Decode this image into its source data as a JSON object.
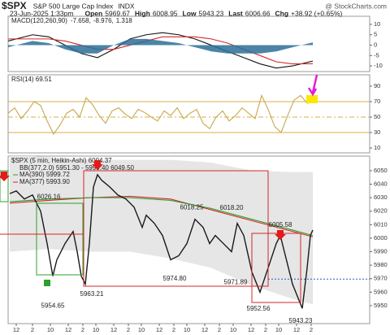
{
  "header": {
    "symbol": "$SPX",
    "name": "S&P 500 Large Cap Index",
    "exchange": "INDX",
    "watermark": "@ StockCharts.com",
    "date": "23-Jun-2025 1:33pm",
    "quote": [
      {
        "label": "Open",
        "value": 5969.67
      },
      {
        "label": "High",
        "value": 6008.95
      },
      {
        "label": "Low",
        "value": 5943.23
      },
      {
        "label": "Last",
        "value": 6006.66
      },
      {
        "label": "Chg",
        "value": "+38.92 (+0.65%)"
      }
    ]
  },
  "chart_data": [
    {
      "type": "line",
      "title": "MACD(120,260,90)",
      "xlim": [
        0,
        445
      ],
      "ylim": [
        -12.7,
        13.9
      ],
      "yticks": [
        10,
        5,
        0,
        -5,
        -10
      ],
      "series": [
        {
          "type": "line",
          "color": "#111111",
          "readout": "-7.658,",
          "x": [
            0,
            30,
            50,
            70,
            90,
            110,
            130,
            150,
            170,
            190,
            210,
            230,
            250,
            270,
            290,
            310,
            330,
            350,
            375
          ],
          "values": [
            2,
            5,
            4,
            0,
            -4,
            -6,
            -2,
            3,
            5,
            6,
            5,
            3,
            0,
            -3,
            -6,
            -9,
            -11,
            -10,
            -7.658
          ]
        },
        {
          "type": "line",
          "color": "#d62728",
          "readout": "-8.976,",
          "x": [
            0,
            30,
            50,
            70,
            90,
            110,
            130,
            150,
            170,
            190,
            210,
            230,
            250,
            270,
            290,
            310,
            330,
            350,
            375
          ],
          "values": [
            3,
            3,
            3,
            2,
            0,
            -2,
            -2,
            0,
            2,
            4,
            4,
            4,
            3,
            1,
            -2,
            -5,
            -8,
            -9,
            -8.976
          ]
        },
        {
          "type": "area",
          "color": "#2b6f97",
          "readout": "1.318",
          "x": [
            0,
            30,
            50,
            70,
            90,
            110,
            130,
            150,
            170,
            190,
            210,
            230,
            250,
            270,
            290,
            310,
            330,
            350,
            375
          ],
          "values": [
            -1,
            2,
            1,
            -2,
            -4,
            -4,
            0,
            3,
            3,
            2,
            1,
            -1,
            -3,
            -4,
            -4,
            -4,
            -3,
            -1,
            1.318
          ]
        }
      ]
    },
    {
      "type": "line",
      "xlim": [
        0,
        445
      ],
      "ylim": [
        3.7,
        104.7
      ],
      "yticks": [
        90,
        70,
        50,
        30,
        10
      ],
      "levels": [
        70,
        30
      ],
      "dashed_levels": [
        50
      ],
      "series": [
        {
          "type": "line",
          "name": "RSI(14) 69.51",
          "color": "#c9a84c",
          "x": [
            0,
            8,
            16,
            24,
            32,
            40,
            48,
            56,
            64,
            72,
            80,
            88,
            96,
            104,
            112,
            120,
            128,
            136,
            144,
            152,
            160,
            168,
            176,
            184,
            192,
            200,
            208,
            216,
            224,
            232,
            240,
            248,
            256,
            264,
            272,
            280,
            288,
            296,
            304,
            312,
            320,
            328,
            336,
            344,
            352,
            360,
            368,
            376
          ],
          "values": [
            55,
            62,
            48,
            58,
            70,
            65,
            45,
            28,
            40,
            55,
            60,
            50,
            75,
            66,
            52,
            42,
            58,
            62,
            54,
            48,
            60,
            56,
            50,
            45,
            58,
            52,
            62,
            48,
            55,
            60,
            42,
            35,
            50,
            58,
            45,
            52,
            62,
            55,
            48,
            78,
            60,
            38,
            30,
            52,
            72,
            78,
            68,
            69.51
          ]
        }
      ]
    },
    {
      "type": "line",
      "xlim": [
        0,
        445
      ],
      "ylim": [
        5936.7,
        6060.8
      ],
      "yticks": [
        6050,
        6040,
        6030,
        6020,
        6010,
        6000,
        5990,
        5980,
        5970,
        5960,
        5950
      ],
      "xticks": [
        {
          "value": 10,
          "label": "12"
        },
        {
          "value": 30,
          "label": "2"
        },
        {
          "value": 52,
          "label": "10"
        },
        {
          "value": 74,
          "label": "12"
        },
        {
          "value": 92,
          "label": "2"
        },
        {
          "value": 108,
          "label": "10"
        },
        {
          "value": 130,
          "label": "12"
        },
        {
          "value": 148,
          "label": "2"
        },
        {
          "value": 164,
          "label": "10"
        },
        {
          "value": 186,
          "label": "12"
        },
        {
          "value": 204,
          "label": "2"
        },
        {
          "value": 220,
          "label": "10"
        },
        {
          "value": 242,
          "label": "12"
        },
        {
          "value": 260,
          "label": "2"
        },
        {
          "value": 277,
          "label": "10"
        },
        {
          "value": 299,
          "label": "12"
        },
        {
          "value": 317,
          "label": "2"
        },
        {
          "value": 333,
          "label": "10"
        },
        {
          "value": 355,
          "label": "12"
        },
        {
          "value": 373,
          "label": "2"
        }
      ],
      "bands": {
        "name": "BB(377,2.0) 5951.30 - 5999.40 6049.50",
        "color": "#e6e6e6",
        "x": [
          2,
          50,
          100,
          150,
          200,
          250,
          300,
          350,
          375
        ],
        "upper": [
          6062,
          6060,
          6058,
          6058,
          6058,
          6056,
          6050,
          6049,
          6049
        ],
        "lower": [
          5990,
          5992,
          5990,
          5990,
          5985,
          5978,
          5965,
          5955,
          5951
        ]
      },
      "series": [
        {
          "type": "line",
          "name": "MA(377) 5993.90",
          "color": "#d62728",
          "x": [
            2,
            50,
            100,
            150,
            200,
            250,
            300,
            350,
            375
          ],
          "values": [
            6026,
            6028,
            6030,
            6031,
            6029,
            6021,
            6013,
            6005,
            6001
          ]
        },
        {
          "type": "line",
          "name": "MA(390) 5999.72",
          "color": "#2ca02c",
          "x": [
            2,
            50,
            100,
            150,
            200,
            250,
            300,
            350,
            375
          ],
          "values": [
            6027,
            6029,
            6030,
            6030,
            6028,
            6022,
            6014,
            6006,
            6002
          ]
        },
        {
          "type": "line",
          "name": "$SPX (5 min, Heikin-Ashi) 6004.37",
          "color": "#1a1a1a",
          "x": [
            2,
            10,
            20,
            30,
            40,
            48,
            55,
            60,
            70,
            80,
            85,
            90,
            95,
            100,
            105,
            110,
            115,
            125,
            135,
            145,
            155,
            165,
            170,
            180,
            190,
            200,
            210,
            220,
            230,
            240,
            248,
            255,
            265,
            275,
            282,
            290,
            300,
            310,
            320,
            330,
            335,
            340,
            350,
            358,
            362,
            368,
            372,
            375
          ],
          "values": [
            6033,
            6035,
            6029,
            6032,
            6020,
            5996,
            5972,
            5984,
            5996,
            6005,
            5990,
            5972,
            5966,
            5996,
            6038,
            6047,
            6043,
            6038,
            6032,
            6029,
            6023,
            6008,
            6017,
            6011,
            6002,
            5984,
            5987,
            5996,
            6014,
            6008,
            5996,
            6002,
            5996,
            5990,
            6011,
            6002,
            5975,
            5960,
            5978,
            5996,
            6002,
            5990,
            5966,
            5954,
            5948,
            5978,
            6002,
            6006
          ]
        }
      ],
      "annotations": [
        {
          "x": 50,
          "value": 6026.16,
          "label": "6026.16"
        },
        {
          "x": 55,
          "value": 5954.65,
          "label": "5954.65"
        },
        {
          "x": 103,
          "value": 5963.21,
          "label": "5963.21"
        },
        {
          "x": 205,
          "value": 5974.8,
          "label": "5974.80"
        },
        {
          "x": 226,
          "value": 6018.25,
          "label": "6018.25"
        },
        {
          "x": 275,
          "value": 6018.2,
          "label": "6018.20"
        },
        {
          "x": 280,
          "value": 5971.89,
          "label": "5971.89"
        },
        {
          "x": 308,
          "value": 5952.56,
          "label": "5952.56"
        },
        {
          "x": 335,
          "value": 6005.58,
          "label": "6005.58"
        },
        {
          "x": 360,
          "value": 5943.23,
          "label": "5943.23"
        }
      ]
    }
  ]
}
